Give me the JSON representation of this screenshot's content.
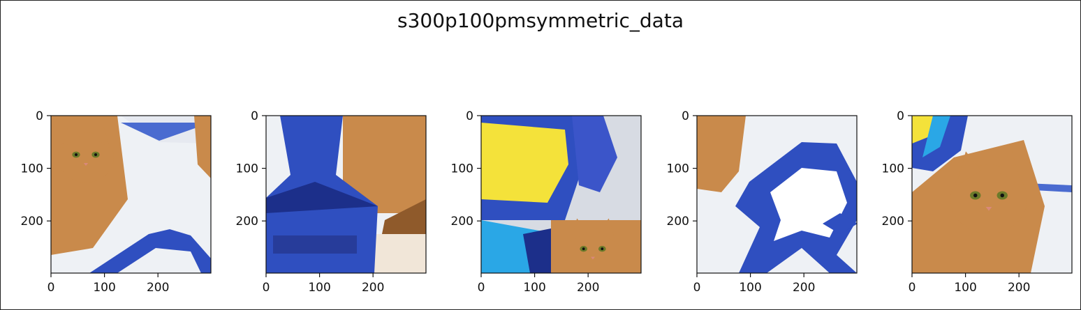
{
  "figure_title": "s300p100pmsymmetric_data",
  "colors": {
    "cat_fur": "#c98a4b",
    "cat_fur_dark": "#8f5a2b",
    "blanket": "#eef1f5",
    "blanket_shadow": "#c8ccd4",
    "blue_fabric": "#2f4fc0",
    "blue_fabric_dark": "#1c2f8a",
    "yellow": "#f4e23a",
    "light_blue": "#2aa7e6"
  },
  "chart_data": [
    {
      "type": "image",
      "panel": 1,
      "content": "cat-face-left-blue-fabric-bottom",
      "xlim": [
        0,
        299
      ],
      "ylim": [
        299,
        0
      ],
      "xticks": [
        0,
        100,
        200
      ],
      "yticks": [
        0,
        100,
        200
      ],
      "xtick_labels": [
        "0",
        "100",
        "200"
      ],
      "ytick_labels": [
        "0",
        "100",
        "200"
      ]
    },
    {
      "type": "image",
      "panel": 2,
      "content": "blue-fabric-column-fur-right",
      "xlim": [
        0,
        299
      ],
      "ylim": [
        299,
        0
      ],
      "xticks": [
        0,
        100,
        200
      ],
      "yticks": [
        0,
        100,
        200
      ],
      "xtick_labels": [
        "0",
        "100",
        "200"
      ],
      "ytick_labels": [
        "0",
        "100",
        "200"
      ]
    },
    {
      "type": "image",
      "panel": 3,
      "content": "yellow-blue-pattern-cat-bottom-right",
      "xlim": [
        0,
        299
      ],
      "ylim": [
        299,
        0
      ],
      "xticks": [
        0,
        100,
        200
      ],
      "yticks": [
        0,
        100,
        200
      ],
      "xtick_labels": [
        "0",
        "100",
        "200"
      ],
      "ytick_labels": [
        "0",
        "100",
        "200"
      ]
    },
    {
      "type": "image",
      "panel": 4,
      "content": "blue-fabric-diamond-on-white",
      "xlim": [
        0,
        299
      ],
      "ylim": [
        299,
        0
      ],
      "xticks": [
        0,
        100,
        200
      ],
      "yticks": [
        0,
        100,
        200
      ],
      "xtick_labels": [
        "0",
        "100",
        "200"
      ],
      "ytick_labels": [
        "0",
        "100",
        "200"
      ]
    },
    {
      "type": "image",
      "panel": 5,
      "content": "cat-face-center-pattern-top-left",
      "xlim": [
        0,
        299
      ],
      "ylim": [
        299,
        0
      ],
      "xticks": [
        0,
        100,
        200
      ],
      "yticks": [
        0,
        100,
        200
      ],
      "xtick_labels": [
        "0",
        "100",
        "200"
      ],
      "ytick_labels": [
        "0",
        "100",
        "200"
      ]
    }
  ]
}
